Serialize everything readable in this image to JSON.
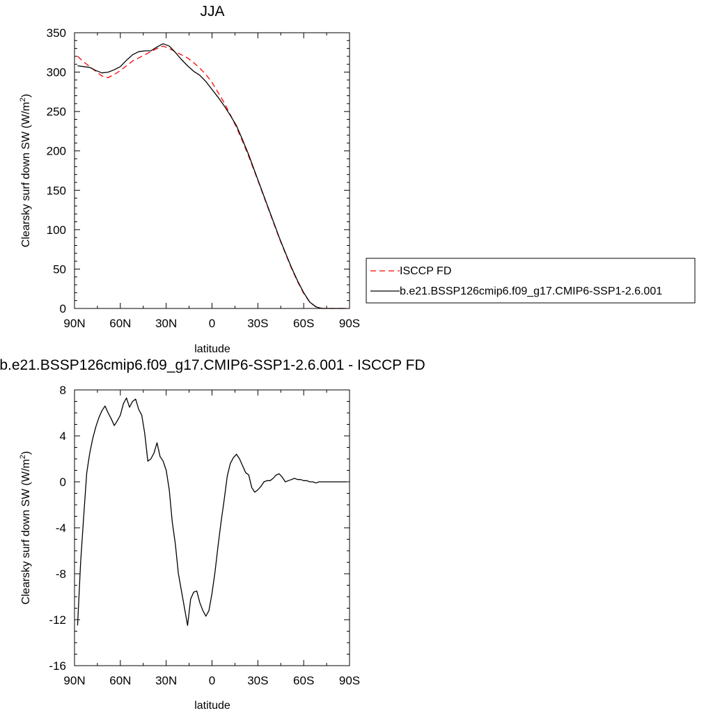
{
  "chart_data": [
    {
      "type": "line",
      "title": "JJA",
      "xlabel": "latitude",
      "ylabel": "Clearsky surf down SW (W/m",
      "ylabel_sup": "2",
      "ylabel_end": ")",
      "xlim": [
        90,
        -90
      ],
      "ylim": [
        0,
        350
      ],
      "x_ticks": [
        90,
        60,
        30,
        0,
        -30,
        -60,
        -90
      ],
      "x_tick_labels": [
        "90N",
        "60N",
        "30N",
        "0",
        "30S",
        "60S",
        "90S"
      ],
      "y_ticks": [
        0,
        50,
        100,
        150,
        200,
        250,
        300,
        350
      ],
      "y_tick_labels": [
        "0",
        "50",
        "100",
        "150",
        "200",
        "250",
        "300",
        "350"
      ],
      "grid": false,
      "legend_position": "right",
      "series": [
        {
          "name": "ISCCP FD",
          "color": "#ff0000",
          "dash": "dashed",
          "x": [
            88,
            84,
            80,
            76,
            72,
            68,
            64,
            60,
            56,
            52,
            48,
            44,
            40,
            36,
            32,
            28,
            24,
            20,
            16,
            12,
            8,
            4,
            0,
            -4,
            -8,
            -12,
            -16,
            -20,
            -24,
            -28,
            -32,
            -36,
            -40,
            -44,
            -48,
            -52,
            -56,
            -60,
            -64,
            -68,
            -72,
            -76,
            -80,
            -84,
            -88
          ],
          "y": [
            320,
            313,
            307,
            301,
            295,
            293,
            297,
            302,
            308,
            314,
            318,
            322,
            326,
            330,
            333,
            330,
            326,
            322,
            318,
            312,
            305,
            297,
            287,
            274,
            261,
            246,
            230,
            212,
            193,
            173,
            152,
            131,
            110,
            89,
            70,
            51,
            34,
            19,
            8,
            2,
            0,
            0,
            0,
            0,
            0
          ]
        },
        {
          "name": "b.e21.BSSP126cmip6.f09_g17.CMIP6-SSP1-2.6.001",
          "color": "#000000",
          "dash": "solid",
          "x": [
            88,
            84,
            80,
            76,
            72,
            68,
            64,
            60,
            56,
            52,
            48,
            44,
            40,
            36,
            32,
            28,
            24,
            20,
            16,
            12,
            8,
            4,
            0,
            -4,
            -8,
            -12,
            -16,
            -20,
            -24,
            -28,
            -32,
            -36,
            -40,
            -44,
            -48,
            -52,
            -56,
            -60,
            -64,
            -68,
            -72,
            -76,
            -80,
            -84,
            -88
          ],
          "y": [
            308,
            307,
            306,
            302,
            299,
            300,
            303,
            307,
            315,
            322,
            326,
            327,
            327,
            332,
            336,
            333,
            325,
            316,
            308,
            301,
            296,
            288,
            278,
            268,
            257,
            245,
            232,
            214,
            195,
            174,
            153,
            132,
            111,
            90,
            71,
            52,
            35,
            20,
            8,
            2,
            0,
            0,
            0,
            0,
            0
          ]
        }
      ]
    },
    {
      "type": "line",
      "title": "b.e21.BSSP126cmip6.f09_g17.CMIP6-SSP1-2.6.001 - ISCCP FD",
      "xlabel": "latitude",
      "ylabel": "Clearsky surf down SW (W/m",
      "ylabel_sup": "2",
      "ylabel_end": ")",
      "xlim": [
        90,
        -90
      ],
      "ylim": [
        -16,
        8
      ],
      "x_ticks": [
        90,
        60,
        30,
        0,
        -30,
        -60,
        -90
      ],
      "x_tick_labels": [
        "90N",
        "60N",
        "30N",
        "0",
        "30S",
        "60S",
        "90S"
      ],
      "y_ticks": [
        -16,
        -12,
        -8,
        -4,
        0,
        4,
        8
      ],
      "y_tick_labels": [
        "-16",
        "-12",
        "-8",
        "-4",
        "0",
        "4",
        "8"
      ],
      "grid": false,
      "series": [
        {
          "color": "#000000",
          "dash": "solid",
          "x": [
            88,
            86,
            84,
            82,
            80,
            78,
            76,
            74,
            72,
            70,
            68,
            66,
            64,
            62,
            60,
            58,
            56,
            54,
            52,
            50,
            48,
            46,
            44,
            42,
            40,
            38,
            36,
            34,
            32,
            30,
            28,
            26,
            24,
            22,
            20,
            18,
            16,
            14,
            12,
            10,
            8,
            6,
            4,
            2,
            0,
            -2,
            -4,
            -6,
            -8,
            -10,
            -12,
            -14,
            -16,
            -18,
            -20,
            -22,
            -24,
            -26,
            -28,
            -30,
            -32,
            -34,
            -36,
            -38,
            -40,
            -42,
            -44,
            -46,
            -48,
            -50,
            -52,
            -54,
            -56,
            -58,
            -60,
            -62,
            -64,
            -66,
            -68,
            -70,
            -72,
            -74,
            -76,
            -78,
            -80,
            -82,
            -84,
            -86,
            -88
          ],
          "y": [
            -12.5,
            -7.0,
            -3.0,
            0.8,
            2.5,
            3.8,
            4.8,
            5.6,
            6.2,
            6.6,
            6.0,
            5.5,
            4.9,
            5.3,
            5.8,
            6.8,
            7.3,
            6.5,
            7.0,
            7.2,
            6.3,
            5.8,
            4.2,
            1.8,
            2.0,
            2.5,
            3.4,
            2.2,
            1.8,
            1.0,
            -0.7,
            -3.5,
            -5.4,
            -8.0,
            -9.5,
            -11.0,
            -12.5,
            -10.2,
            -9.6,
            -9.5,
            -10.5,
            -11.2,
            -11.7,
            -11.2,
            -9.7,
            -7.8,
            -5.5,
            -3.4,
            -1.5,
            0.5,
            1.6,
            2.1,
            2.4,
            2.0,
            1.4,
            0.8,
            0.6,
            -0.5,
            -0.9,
            -0.7,
            -0.4,
            0.0,
            0.1,
            0.1,
            0.3,
            0.6,
            0.7,
            0.4,
            0.0,
            0.1,
            0.2,
            0.3,
            0.2,
            0.2,
            0.1,
            0.1,
            0.0,
            0.0,
            -0.1,
            0.0,
            0.0,
            0.0,
            0.0,
            0.0,
            0.0,
            0.0,
            0.0,
            0.0,
            0.0
          ]
        }
      ]
    }
  ]
}
